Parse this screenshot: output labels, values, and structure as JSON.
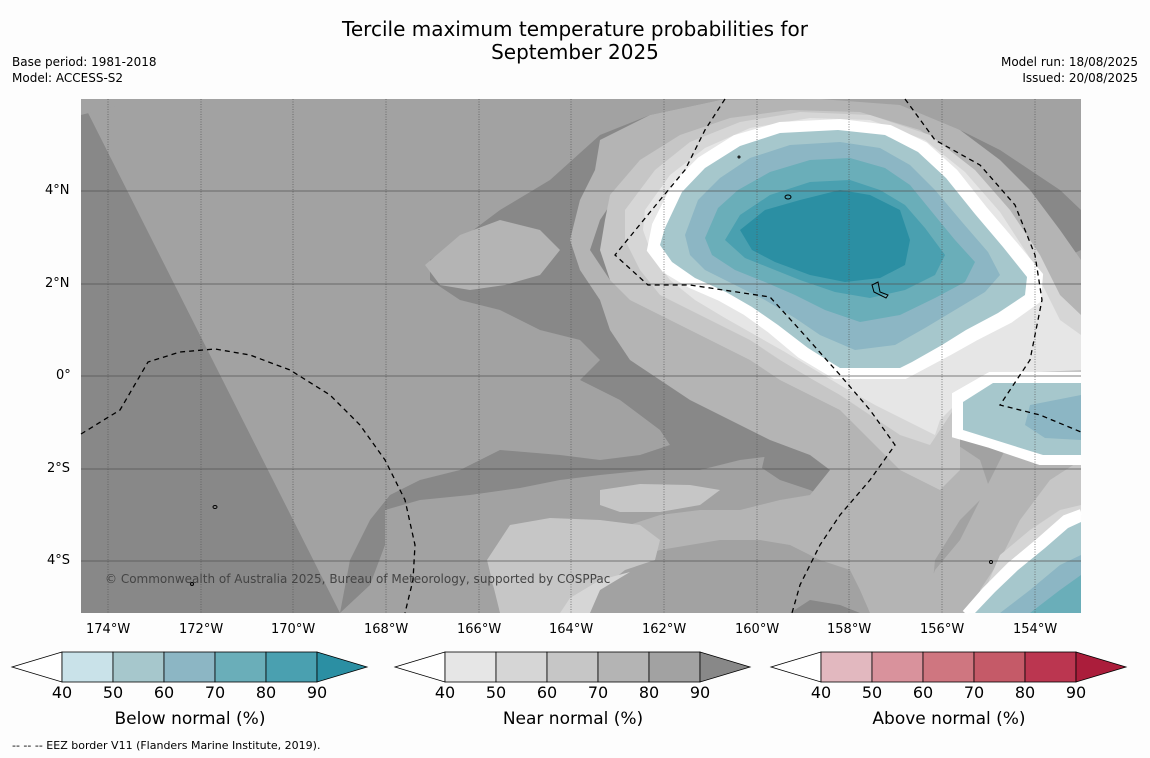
{
  "title_line1": "Tercile maximum temperature probabilities for",
  "title_line2": "September 2025",
  "meta_left": [
    "Base period: 1981-2018",
    "Model: ACCESS-S2"
  ],
  "meta_right": [
    "Model run: 18/08/2025",
    "Issued: 20/08/2025"
  ],
  "copyright": "© Commonwealth of Australia 2025, Bureau of Meteorology, supported by COSPPac",
  "lon_labels": [
    "174°W",
    "172°W",
    "170°W",
    "168°W",
    "166°W",
    "164°W",
    "162°W",
    "160°W",
    "158°W",
    "156°W",
    "154°W"
  ],
  "lat_labels": [
    "4°N",
    "2°N",
    "0°",
    "2°S",
    "4°S"
  ],
  "colorbars": [
    {
      "title": "Below normal (%)",
      "ticks": [
        "40",
        "50",
        "60",
        "70",
        "80",
        "90"
      ],
      "colors": [
        "#ffffff",
        "#c9e2e9",
        "#a6c7cc",
        "#8cb6c4",
        "#6aaeb9",
        "#4aa0b0",
        "#2b8fa3"
      ]
    },
    {
      "title": "Near normal (%)",
      "ticks": [
        "40",
        "50",
        "60",
        "70",
        "80",
        "90"
      ],
      "colors": [
        "#ffffff",
        "#e6e6e6",
        "#d6d6d6",
        "#c6c6c6",
        "#b4b4b4",
        "#a2a2a2",
        "#888888"
      ]
    },
    {
      "title": "Above normal (%)",
      "ticks": [
        "40",
        "50",
        "60",
        "70",
        "80",
        "90"
      ],
      "colors": [
        "#ffffff",
        "#e2b8bf",
        "#d9929c",
        "#cf7680",
        "#c55a68",
        "#bb3650",
        "#ab1d3b"
      ]
    }
  ],
  "eez_legend": "--  --  -- EEZ border V11 (Flanders Marine Institute, 2019)."
}
